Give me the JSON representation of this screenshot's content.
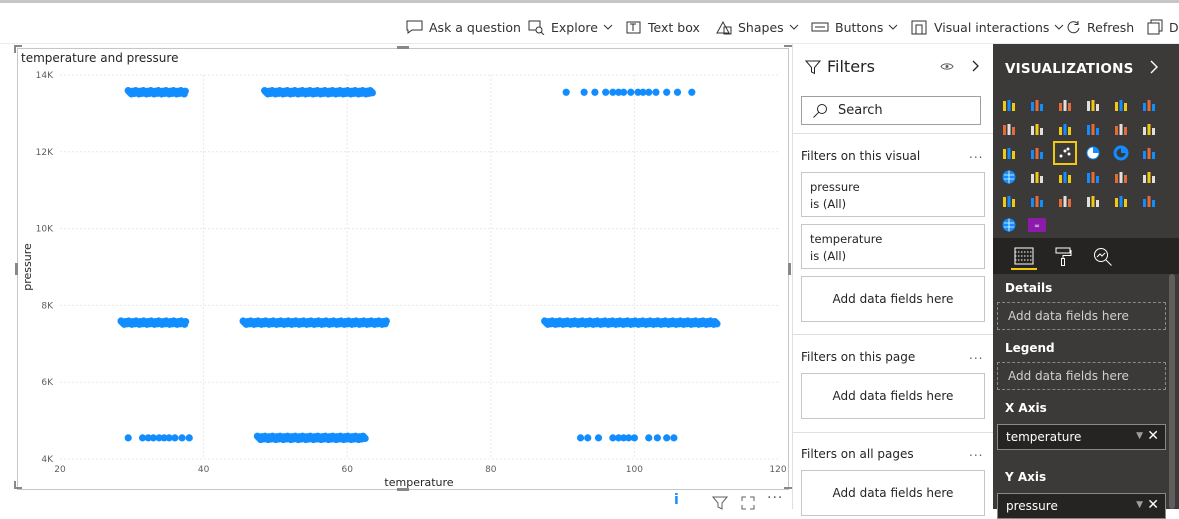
{
  "toolbar": {
    "ask": "Ask a question",
    "explore": "Explore",
    "textbox": "Text box",
    "shapes": "Shapes",
    "buttons": "Buttons",
    "interactions": "Visual interactions",
    "refresh": "Refresh",
    "cut": "D"
  },
  "visual": {
    "title": "temperature and pressure",
    "footer_info": "i"
  },
  "chart_data": {
    "type": "scatter",
    "title": "temperature and pressure",
    "xlabel": "temperature",
    "ylabel": "pressure",
    "xlim": [
      20,
      120
    ],
    "ylim": [
      4000,
      14000
    ],
    "xticks": [
      "20",
      "40",
      "60",
      "80",
      "100",
      "120"
    ],
    "yticks": [
      "4K",
      "6K",
      "8K",
      "10K",
      "12K",
      "14K"
    ],
    "xtick_values": [
      20,
      40,
      60,
      80,
      100,
      120
    ],
    "ytick_values": [
      4000,
      6000,
      8000,
      10000,
      12000,
      14000
    ],
    "grid": true,
    "color": "#118DFF",
    "series": [
      {
        "clusters": [
          {
            "y": 13550,
            "xmin": 29.5,
            "xmax": 37.5,
            "dense": true
          },
          {
            "y": 13550,
            "xmin": 48.5,
            "xmax": 63.5,
            "dense": true
          },
          {
            "y": 13550,
            "x": [
              90.5,
              93,
              94.5,
              96,
              97,
              97.8,
              98.5,
              99.5,
              100.5,
              101.2,
              102,
              103,
              104.5,
              106,
              108
            ]
          },
          {
            "y": 7550,
            "xmin": 28.5,
            "xmax": 37.5,
            "dense": true
          },
          {
            "y": 7550,
            "xmin": 45.5,
            "xmax": 65.5,
            "dense": true
          },
          {
            "y": 7550,
            "xmin": 87.5,
            "xmax": 111.5,
            "dense": true
          },
          {
            "y": 4550,
            "x": [
              29.5,
              31.5,
              32.3,
              33,
              33.8,
              34.5,
              35.2,
              36,
              37,
              38
            ]
          },
          {
            "y": 4550,
            "xmin": 47.5,
            "xmax": 62.5,
            "dense": true
          },
          {
            "y": 4550,
            "x": [
              92.5,
              93.5,
              95,
              97,
              97.8,
              98.5,
              99.2,
              100,
              102,
              103.2,
              104.5,
              105.5
            ]
          }
        ]
      }
    ]
  },
  "filters": {
    "title": "Filters",
    "search_placeholder": "Search",
    "on_visual": "Filters on this visual",
    "on_page": "Filters on this page",
    "on_all": "Filters on all pages",
    "more": "...",
    "cards": [
      {
        "field": "pressure",
        "state": "is (All)"
      },
      {
        "field": "temperature",
        "state": "is (All)"
      }
    ],
    "add_here": "Add data fields here"
  },
  "viz": {
    "title": "VISUALIZATIONS",
    "wells": {
      "details": "Details",
      "legend": "Legend",
      "xaxis": "X Axis",
      "yaxis": "Y Axis",
      "placeholder": "Add data fields here",
      "xaxis_field": "temperature",
      "yaxis_field": "pressure"
    }
  },
  "colors": {
    "accent": "#118DFF",
    "pane_bg": "#3b3a39",
    "selected_viz": "#f2c811"
  }
}
